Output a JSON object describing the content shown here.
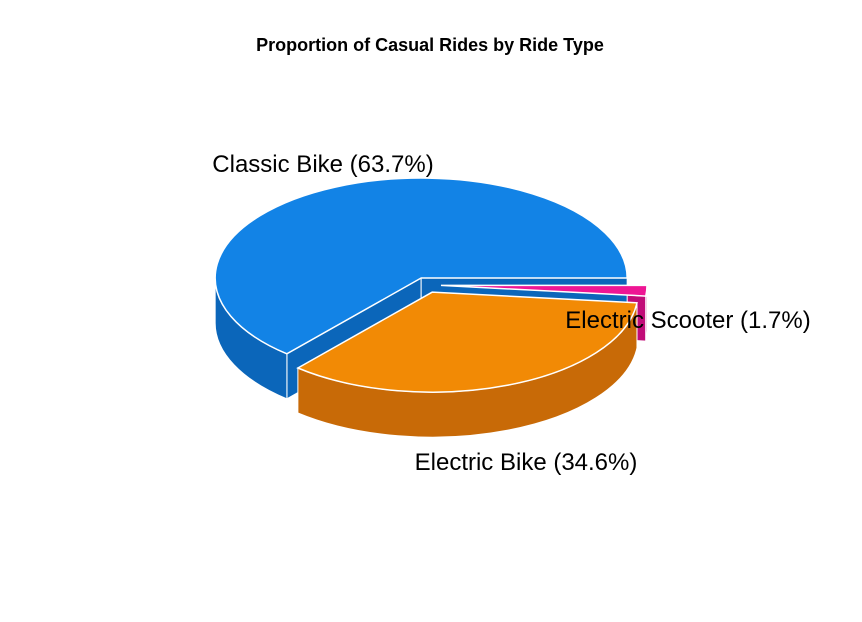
{
  "chart_data": {
    "type": "pie",
    "title": "Proportion of Casual Rides by Ride Type",
    "style": "3d-exploded",
    "slices": [
      {
        "label": "Classic Bike (63.7%)",
        "category": "Classic Bike",
        "value": 63.7,
        "color": "#1283E6",
        "side_color": "#0B66BA"
      },
      {
        "label": "Electric Bike (34.6%)",
        "category": "Electric Bike",
        "value": 34.6,
        "color": "#F28A05",
        "side_color": "#C86A07"
      },
      {
        "label": "Electric Scooter (1.7%)",
        "category": "Electric Scooter",
        "value": 1.7,
        "color": "#EE1694",
        "side_color": "#C10C78"
      }
    ]
  }
}
